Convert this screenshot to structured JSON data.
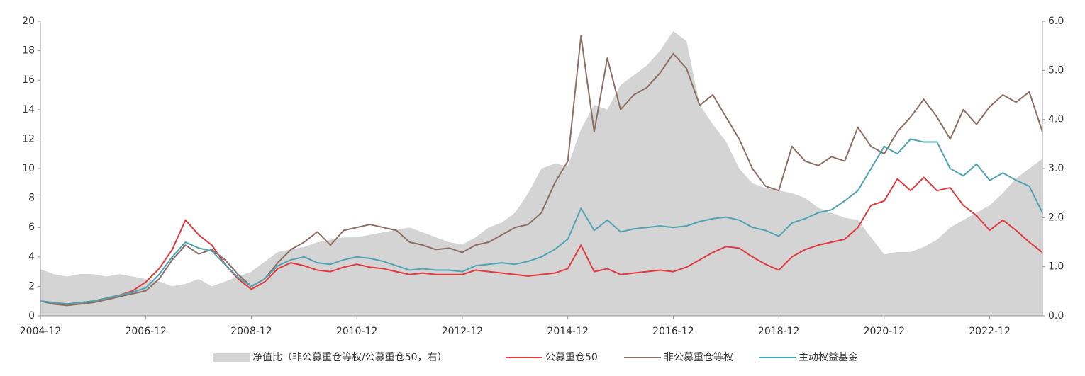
{
  "chart_data": {
    "type": "line",
    "x": [
      "2004-12",
      "2005-03",
      "2005-06",
      "2005-09",
      "2005-12",
      "2006-03",
      "2006-06",
      "2006-09",
      "2006-12",
      "2007-03",
      "2007-06",
      "2007-09",
      "2007-12",
      "2008-03",
      "2008-06",
      "2008-09",
      "2008-12",
      "2009-03",
      "2009-06",
      "2009-09",
      "2009-12",
      "2010-03",
      "2010-06",
      "2010-09",
      "2010-12",
      "2011-03",
      "2011-06",
      "2011-09",
      "2011-12",
      "2012-03",
      "2012-06",
      "2012-09",
      "2012-12",
      "2013-03",
      "2013-06",
      "2013-09",
      "2013-12",
      "2014-03",
      "2014-06",
      "2014-09",
      "2014-12",
      "2015-03",
      "2015-06",
      "2015-09",
      "2015-12",
      "2016-03",
      "2016-06",
      "2016-09",
      "2016-12",
      "2017-03",
      "2017-06",
      "2017-09",
      "2017-12",
      "2018-03",
      "2018-06",
      "2018-09",
      "2018-12",
      "2019-03",
      "2019-06",
      "2019-09",
      "2019-12",
      "2020-03",
      "2020-06",
      "2020-09",
      "2020-12",
      "2021-03",
      "2021-06",
      "2021-09",
      "2021-12",
      "2022-03",
      "2022-06",
      "2022-09",
      "2022-12",
      "2023-03",
      "2023-06",
      "2023-09",
      "2023-12"
    ],
    "xticks": [
      "2004-12",
      "2006-12",
      "2008-12",
      "2010-12",
      "2012-12",
      "2014-12",
      "2016-12",
      "2018-12",
      "2020-12",
      "2022-12"
    ],
    "ylim": [
      0,
      20
    ],
    "yticks": [
      0,
      2,
      4,
      6,
      8,
      10,
      12,
      14,
      16,
      18,
      20
    ],
    "y2lim": [
      0,
      6
    ],
    "y2ticks": [
      {
        "value": 0,
        "label": "0.0"
      },
      {
        "value": 1,
        "label": "1.0"
      },
      {
        "value": 2,
        "label": "2.0"
      },
      {
        "value": 3,
        "label": "3.0"
      },
      {
        "value": 4,
        "label": "4.0"
      },
      {
        "value": 5,
        "label": "5.0"
      },
      {
        "value": 6,
        "label": "6.0"
      }
    ],
    "legend": "bottom",
    "series": [
      {
        "name": "净值比（非公募重仓等权/公募重仓50，右）",
        "color": "#d4d4d4",
        "kind": "area",
        "axis": "y2",
        "values": [
          0.95,
          0.85,
          0.8,
          0.85,
          0.85,
          0.8,
          0.85,
          0.8,
          0.75,
          0.7,
          0.6,
          0.65,
          0.75,
          0.6,
          0.7,
          0.8,
          0.9,
          1.1,
          1.3,
          1.35,
          1.4,
          1.5,
          1.55,
          1.6,
          1.6,
          1.65,
          1.7,
          1.75,
          1.8,
          1.7,
          1.6,
          1.5,
          1.45,
          1.6,
          1.8,
          1.9,
          2.1,
          2.5,
          3.0,
          3.1,
          3.05,
          3.8,
          4.3,
          4.2,
          4.7,
          4.9,
          5.1,
          5.4,
          5.8,
          5.6,
          4.3,
          3.9,
          3.55,
          3.0,
          2.7,
          2.6,
          2.55,
          2.5,
          2.4,
          2.2,
          2.1,
          2.0,
          1.95,
          1.6,
          1.25,
          1.3,
          1.3,
          1.4,
          1.55,
          1.8,
          1.95,
          2.1,
          2.25,
          2.5,
          2.8,
          3.0,
          3.2
        ]
      },
      {
        "name": "公募重仓50",
        "color": "#e0393e",
        "values": [
          1.0,
          0.9,
          0.8,
          0.9,
          1.0,
          1.2,
          1.4,
          1.7,
          2.3,
          3.2,
          4.5,
          6.5,
          5.5,
          4.8,
          3.5,
          2.5,
          1.8,
          2.3,
          3.2,
          3.6,
          3.4,
          3.1,
          3.0,
          3.3,
          3.5,
          3.3,
          3.2,
          3.0,
          2.8,
          2.9,
          2.8,
          2.8,
          2.8,
          3.1,
          3.0,
          2.9,
          2.8,
          2.7,
          2.8,
          2.9,
          3.2,
          4.8,
          3.0,
          3.2,
          2.8,
          2.9,
          3.0,
          3.1,
          3.0,
          3.3,
          3.8,
          4.3,
          4.7,
          4.6,
          4.0,
          3.5,
          3.1,
          4.0,
          4.5,
          4.8,
          5.0,
          5.2,
          6.0,
          7.5,
          7.8,
          9.3,
          8.5,
          9.4,
          8.5,
          8.7,
          7.5,
          6.8,
          5.8,
          6.5,
          5.8,
          5.0,
          4.3
        ]
      },
      {
        "name": "非公募重仓等权",
        "color": "#8c6e64",
        "values": [
          1.0,
          0.8,
          0.7,
          0.8,
          0.9,
          1.1,
          1.3,
          1.5,
          1.7,
          2.5,
          3.8,
          4.8,
          4.2,
          4.5,
          3.8,
          2.8,
          2.0,
          2.5,
          3.6,
          4.5,
          5.0,
          5.7,
          4.8,
          5.8,
          6.0,
          6.2,
          6.0,
          5.8,
          5.0,
          4.8,
          4.5,
          4.6,
          4.3,
          4.8,
          5.0,
          5.5,
          6.0,
          6.2,
          7.0,
          9.0,
          10.5,
          19.0,
          12.5,
          17.5,
          14.0,
          15.0,
          15.5,
          16.5,
          17.8,
          16.8,
          14.3,
          15.0,
          13.5,
          12.0,
          10.0,
          8.8,
          8.5,
          11.5,
          10.5,
          10.2,
          10.8,
          10.5,
          12.8,
          11.5,
          11.0,
          12.5,
          13.5,
          14.7,
          13.5,
          12.0,
          14.0,
          13.0,
          14.2,
          15.0,
          14.5,
          15.2,
          12.5
        ]
      },
      {
        "name": "主动权益基金",
        "color": "#4fa3b3",
        "values": [
          1.0,
          0.9,
          0.8,
          0.9,
          1.0,
          1.2,
          1.4,
          1.6,
          1.9,
          2.8,
          4.0,
          5.0,
          4.6,
          4.4,
          3.5,
          2.6,
          2.0,
          2.5,
          3.4,
          3.8,
          4.0,
          3.6,
          3.5,
          3.8,
          4.0,
          3.9,
          3.7,
          3.4,
          3.1,
          3.2,
          3.1,
          3.1,
          3.0,
          3.4,
          3.5,
          3.6,
          3.5,
          3.7,
          4.0,
          4.5,
          5.2,
          7.3,
          5.8,
          6.5,
          5.7,
          5.9,
          6.0,
          6.1,
          6.0,
          6.1,
          6.4,
          6.6,
          6.7,
          6.5,
          6.0,
          5.8,
          5.4,
          6.3,
          6.6,
          7.0,
          7.2,
          7.8,
          8.5,
          10.0,
          11.5,
          11.0,
          12.0,
          11.8,
          11.8,
          10.0,
          9.5,
          10.3,
          9.2,
          9.7,
          9.2,
          8.8,
          7.0
        ]
      }
    ]
  }
}
